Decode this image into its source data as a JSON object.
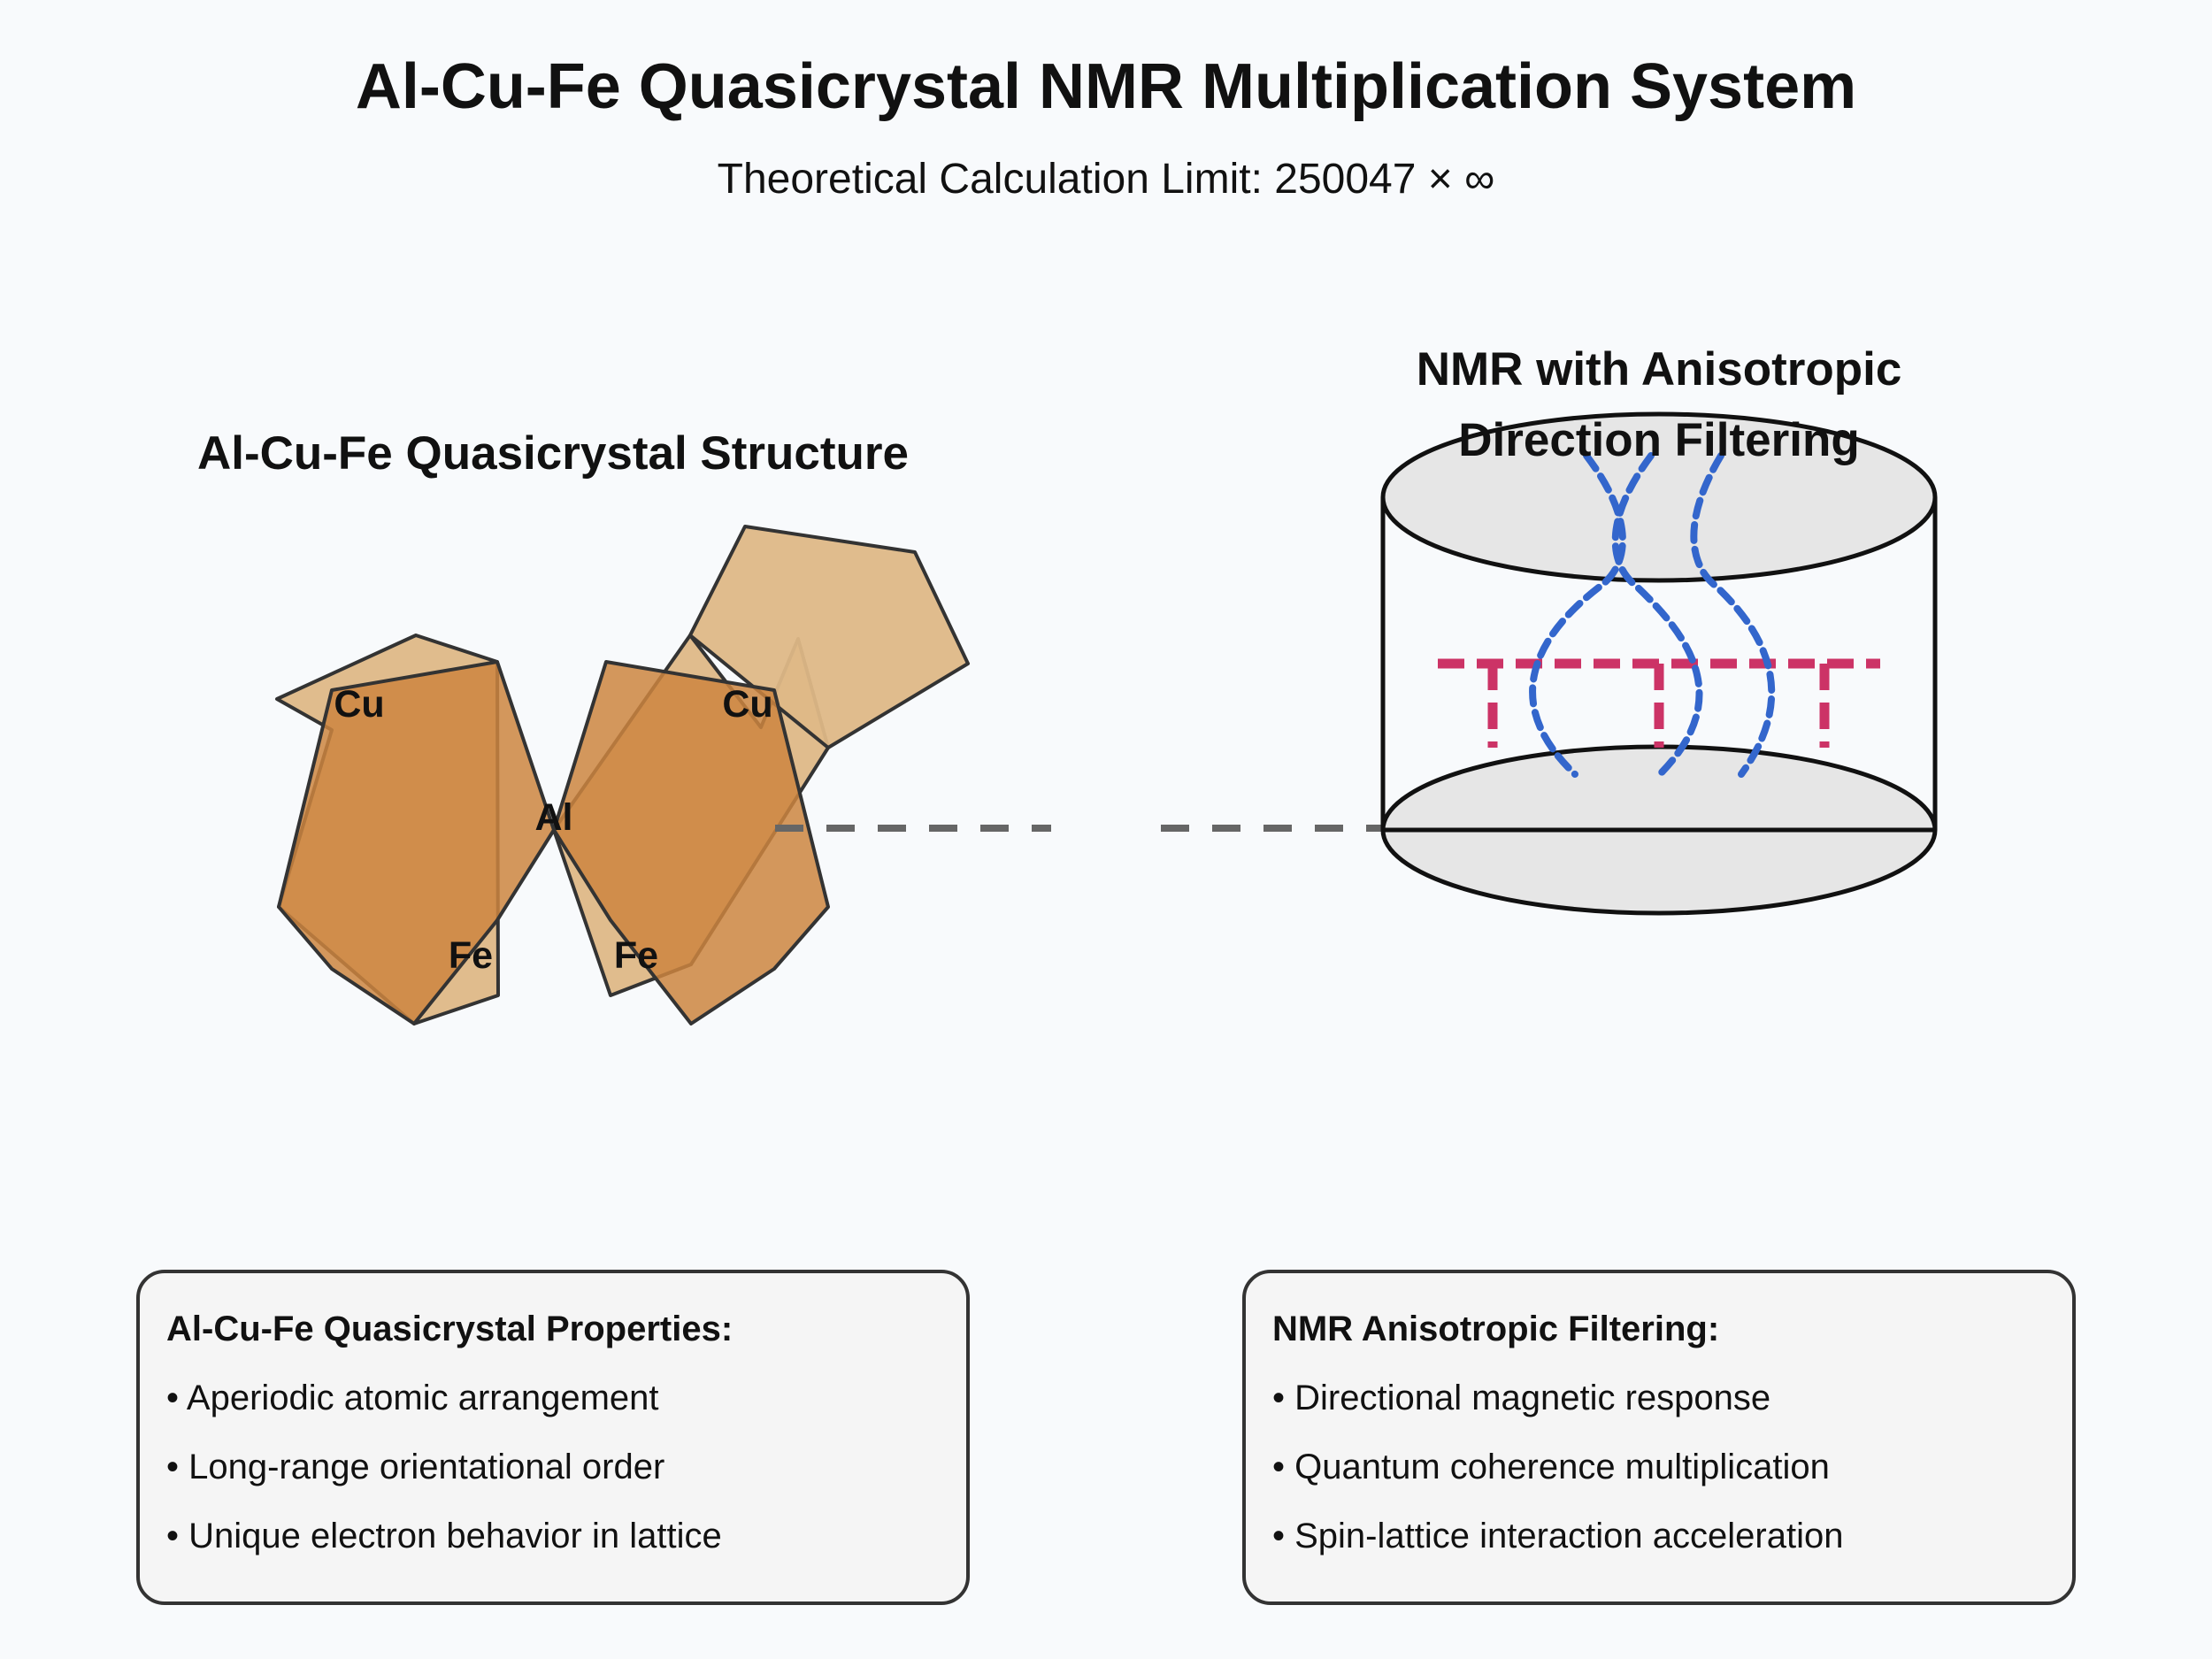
{
  "header": {
    "title": "Al-Cu-Fe Quasicrystal NMR Multiplication System",
    "subtitle": "Theoretical Calculation Limit: 250047 × ∞"
  },
  "quasicrystal": {
    "title": "Al-Cu-Fe Quasicrystal Structure",
    "labels": {
      "cu_left": "Cu",
      "cu_right": "Cu",
      "al_center": "Al",
      "fe_left": "Fe",
      "fe_right": "Fe"
    },
    "colors": {
      "light": "#deb887",
      "dark": "#cd853f",
      "stroke": "#333333"
    }
  },
  "nmr": {
    "title_line1": "NMR with Anisotropic",
    "title_line2": "Direction Filtering",
    "colors": {
      "cylinder_fill": "#e6e6e6",
      "wave": "#3366cc",
      "filter": "#cc3366",
      "connector": "#666666"
    }
  },
  "info_boxes": {
    "left": {
      "heading": "Al-Cu-Fe Quasicrystal Properties:",
      "items": [
        "• Aperiodic atomic arrangement",
        "• Long-range orientational order",
        "• Unique electron behavior in lattice"
      ]
    },
    "right": {
      "heading": "NMR Anisotropic Filtering:",
      "items": [
        "• Directional magnetic response",
        "• Quantum coherence multiplication",
        "• Spin-lattice interaction acceleration"
      ]
    }
  }
}
